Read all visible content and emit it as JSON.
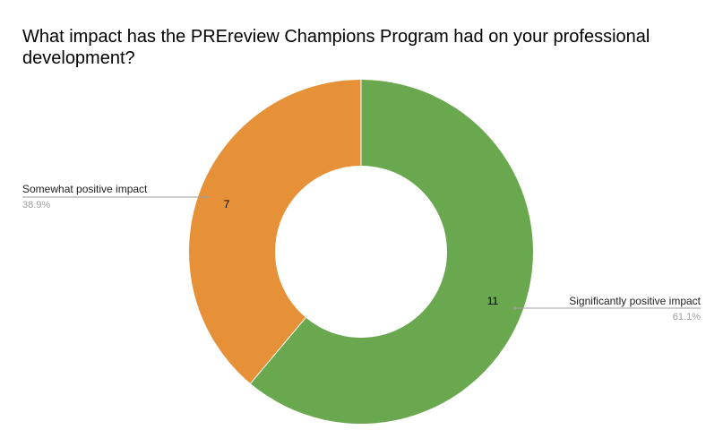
{
  "chart_data": {
    "type": "pie",
    "variant": "donut",
    "title": "What impact has the PREreview Champions Program had on your professional development?",
    "slices": [
      {
        "label": "Significantly positive impact",
        "value": 11,
        "percent": "61.1%",
        "color": "#6aa84f"
      },
      {
        "label": "Somewhat positive impact",
        "value": 7,
        "percent": "38.9%",
        "color": "#e69138"
      }
    ],
    "legend": "none"
  }
}
